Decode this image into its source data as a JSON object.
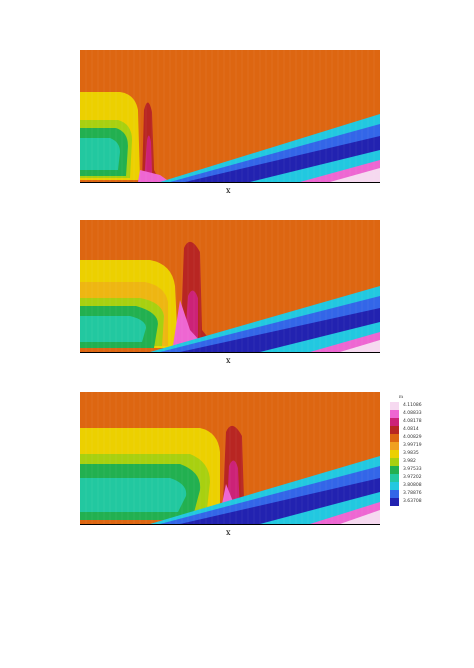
{
  "figure": {
    "panels": [
      {
        "id": "panel-1",
        "xlabel": "x"
      },
      {
        "id": "panel-2",
        "xlabel": "x"
      },
      {
        "id": "panel-3",
        "xlabel": "x"
      }
    ]
  },
  "legend": {
    "title": "Ei",
    "entries": [
      {
        "label": "4.11086",
        "color": "#f6d9f0"
      },
      {
        "label": "4.08833",
        "color": "#ee66d2"
      },
      {
        "label": "4.08178",
        "color": "#cc2277"
      },
      {
        "label": "4.0814",
        "color": "#b82622"
      },
      {
        "label": "4.00829",
        "color": "#dd6611"
      },
      {
        "label": "3.99719",
        "color": "#f0a020"
      },
      {
        "label": "3.9835",
        "color": "#ecd000"
      },
      {
        "label": "3.982",
        "color": "#a8d010"
      },
      {
        "label": "3.97533",
        "color": "#22b050"
      },
      {
        "label": "3.97202",
        "color": "#22c8a0"
      },
      {
        "label": "3.80808",
        "color": "#22c8e0"
      },
      {
        "label": "3.78876",
        "color": "#3366e8"
      },
      {
        "label": "3.63708",
        "color": "#2222b0"
      }
    ]
  }
}
